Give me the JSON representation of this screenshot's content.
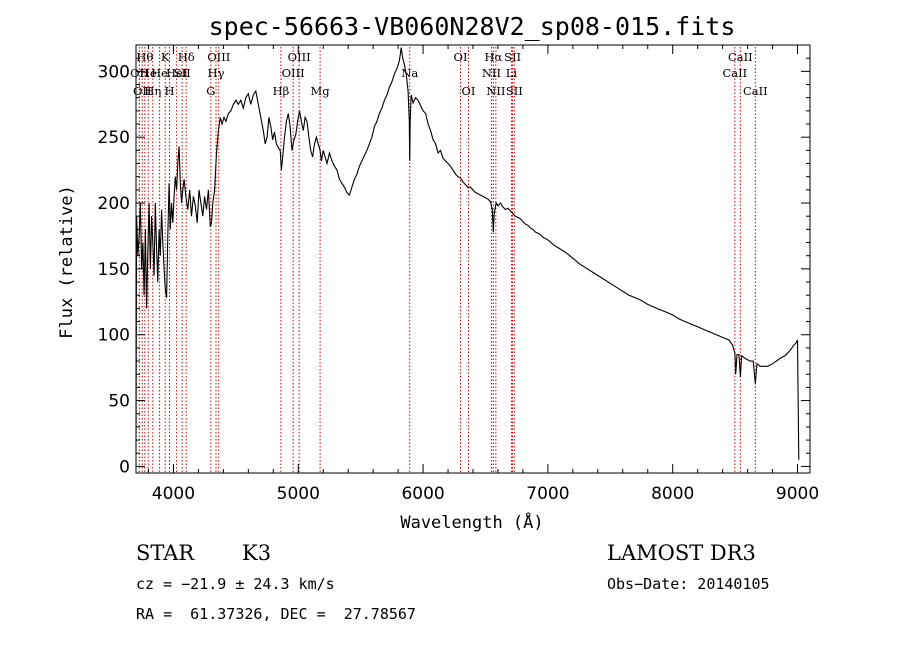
{
  "chart_data": {
    "type": "line",
    "title": "spec-56663-VB060N28V2_sp08-015.fits",
    "xlabel": "Wavelength (Å)",
    "ylabel": "Flux (relative)",
    "xlim": [
      3700,
      9100
    ],
    "ylim": [
      -5,
      320
    ],
    "xticks": [
      4000,
      5000,
      6000,
      7000,
      8000,
      9000
    ],
    "yticks": [
      0,
      50,
      100,
      150,
      200,
      250,
      300
    ],
    "grid": false,
    "series": [
      {
        "name": "spectrum",
        "points": [
          [
            3700,
            15
          ],
          [
            3705,
            190
          ],
          [
            3715,
            160
          ],
          [
            3725,
            175
          ],
          [
            3735,
            200
          ],
          [
            3745,
            150
          ],
          [
            3755,
            170
          ],
          [
            3765,
            130
          ],
          [
            3775,
            180
          ],
          [
            3785,
            120
          ],
          [
            3795,
            165
          ],
          [
            3805,
            200
          ],
          [
            3815,
            150
          ],
          [
            3825,
            190
          ],
          [
            3835,
            170
          ],
          [
            3845,
            145
          ],
          [
            3855,
            200
          ],
          [
            3865,
            165
          ],
          [
            3875,
            140
          ],
          [
            3885,
            180
          ],
          [
            3895,
            160
          ],
          [
            3905,
            195
          ],
          [
            3915,
            170
          ],
          [
            3925,
            150
          ],
          [
            3935,
            135
          ],
          [
            3945,
            128
          ],
          [
            3955,
            175
          ],
          [
            3965,
            215
          ],
          [
            3975,
            180
          ],
          [
            3985,
            200
          ],
          [
            3995,
            185
          ],
          [
            4005,
            205
          ],
          [
            4015,
            220
          ],
          [
            4025,
            210
          ],
          [
            4035,
            230
          ],
          [
            4045,
            243
          ],
          [
            4055,
            215
          ],
          [
            4065,
            200
          ],
          [
            4075,
            210
          ],
          [
            4085,
            218
          ],
          [
            4100,
            205
          ],
          [
            4115,
            195
          ],
          [
            4130,
            210
          ],
          [
            4145,
            190
          ],
          [
            4160,
            205
          ],
          [
            4175,
            198
          ],
          [
            4190,
            185
          ],
          [
            4205,
            210
          ],
          [
            4220,
            200
          ],
          [
            4235,
            190
          ],
          [
            4250,
            205
          ],
          [
            4265,
            195
          ],
          [
            4280,
            210
          ],
          [
            4295,
            182
          ],
          [
            4305,
            185
          ],
          [
            4315,
            200
          ],
          [
            4330,
            210
          ],
          [
            4345,
            238
          ],
          [
            4360,
            255
          ],
          [
            4375,
            265
          ],
          [
            4390,
            260
          ],
          [
            4405,
            265
          ],
          [
            4420,
            262
          ],
          [
            4440,
            268
          ],
          [
            4460,
            270
          ],
          [
            4480,
            275
          ],
          [
            4500,
            278
          ],
          [
            4520,
            275
          ],
          [
            4540,
            278
          ],
          [
            4560,
            272
          ],
          [
            4580,
            280
          ],
          [
            4600,
            283
          ],
          [
            4620,
            275
          ],
          [
            4640,
            282
          ],
          [
            4660,
            285
          ],
          [
            4680,
            275
          ],
          [
            4700,
            265
          ],
          [
            4720,
            255
          ],
          [
            4735,
            245
          ],
          [
            4750,
            250
          ],
          [
            4765,
            265
          ],
          [
            4780,
            258
          ],
          [
            4795,
            248
          ],
          [
            4810,
            254
          ],
          [
            4825,
            245
          ],
          [
            4840,
            242
          ],
          [
            4855,
            240
          ],
          [
            4865,
            225
          ],
          [
            4875,
            235
          ],
          [
            4890,
            250
          ],
          [
            4905,
            262
          ],
          [
            4920,
            268
          ],
          [
            4935,
            258
          ],
          [
            4950,
            240
          ],
          [
            4965,
            248
          ],
          [
            4980,
            252
          ],
          [
            4995,
            262
          ],
          [
            5010,
            270
          ],
          [
            5025,
            262
          ],
          [
            5040,
            255
          ],
          [
            5055,
            265
          ],
          [
            5070,
            262
          ],
          [
            5085,
            250
          ],
          [
            5100,
            240
          ],
          [
            5115,
            235
          ],
          [
            5130,
            245
          ],
          [
            5145,
            250
          ],
          [
            5160,
            245
          ],
          [
            5175,
            240
          ],
          [
            5185,
            232
          ],
          [
            5200,
            240
          ],
          [
            5215,
            235
          ],
          [
            5230,
            230
          ],
          [
            5250,
            238
          ],
          [
            5270,
            232
          ],
          [
            5290,
            228
          ],
          [
            5310,
            225
          ],
          [
            5330,
            218
          ],
          [
            5350,
            215
          ],
          [
            5370,
            212
          ],
          [
            5390,
            208
          ],
          [
            5410,
            206
          ],
          [
            5430,
            212
          ],
          [
            5450,
            218
          ],
          [
            5470,
            222
          ],
          [
            5490,
            228
          ],
          [
            5510,
            232
          ],
          [
            5530,
            236
          ],
          [
            5550,
            240
          ],
          [
            5570,
            245
          ],
          [
            5590,
            250
          ],
          [
            5610,
            258
          ],
          [
            5630,
            262
          ],
          [
            5650,
            268
          ],
          [
            5670,
            272
          ],
          [
            5690,
            278
          ],
          [
            5710,
            282
          ],
          [
            5730,
            288
          ],
          [
            5750,
            292
          ],
          [
            5770,
            298
          ],
          [
            5790,
            302
          ],
          [
            5810,
            308
          ],
          [
            5825,
            318
          ],
          [
            5835,
            311
          ],
          [
            5850,
            305
          ],
          [
            5865,
            298
          ],
          [
            5880,
            285
          ],
          [
            5890,
            262
          ],
          [
            5893,
            232
          ],
          [
            5897,
            262
          ],
          [
            5905,
            282
          ],
          [
            5920,
            276
          ],
          [
            5940,
            280
          ],
          [
            5960,
            278
          ],
          [
            5980,
            274
          ],
          [
            6000,
            270
          ],
          [
            6020,
            268
          ],
          [
            6040,
            260
          ],
          [
            6060,
            255
          ],
          [
            6080,
            248
          ],
          [
            6100,
            245
          ],
          [
            6120,
            238
          ],
          [
            6140,
            240
          ],
          [
            6160,
            234
          ],
          [
            6180,
            232
          ],
          [
            6200,
            230
          ],
          [
            6220,
            228
          ],
          [
            6240,
            225
          ],
          [
            6260,
            222
          ],
          [
            6280,
            220
          ],
          [
            6300,
            219
          ],
          [
            6320,
            216
          ],
          [
            6340,
            214
          ],
          [
            6360,
            212
          ],
          [
            6380,
            212
          ],
          [
            6400,
            210
          ],
          [
            6420,
            208
          ],
          [
            6440,
            207
          ],
          [
            6460,
            206
          ],
          [
            6480,
            205
          ],
          [
            6500,
            204
          ],
          [
            6520,
            203
          ],
          [
            6540,
            201
          ],
          [
            6555,
            195
          ],
          [
            6563,
            178
          ],
          [
            6570,
            192
          ],
          [
            6585,
            200
          ],
          [
            6600,
            198
          ],
          [
            6620,
            200
          ],
          [
            6640,
            197
          ],
          [
            6660,
            195
          ],
          [
            6680,
            196
          ],
          [
            6700,
            194
          ],
          [
            6720,
            192
          ],
          [
            6740,
            190
          ],
          [
            6760,
            189
          ],
          [
            6780,
            188
          ],
          [
            6800,
            186
          ],
          [
            6820,
            184
          ],
          [
            6840,
            183
          ],
          [
            6860,
            181
          ],
          [
            6880,
            180
          ],
          [
            6900,
            178
          ],
          [
            6920,
            177
          ],
          [
            6940,
            176
          ],
          [
            6960,
            174
          ],
          [
            6980,
            173
          ],
          [
            7000,
            172
          ],
          [
            7050,
            168
          ],
          [
            7100,
            165
          ],
          [
            7150,
            162
          ],
          [
            7200,
            158
          ],
          [
            7250,
            154
          ],
          [
            7300,
            151
          ],
          [
            7350,
            148
          ],
          [
            7400,
            145
          ],
          [
            7450,
            142
          ],
          [
            7500,
            139
          ],
          [
            7550,
            136
          ],
          [
            7600,
            133
          ],
          [
            7650,
            130
          ],
          [
            7700,
            128
          ],
          [
            7750,
            126
          ],
          [
            7800,
            123
          ],
          [
            7850,
            121
          ],
          [
            7900,
            119
          ],
          [
            7950,
            117
          ],
          [
            8000,
            115
          ],
          [
            8050,
            112
          ],
          [
            8100,
            110
          ],
          [
            8150,
            108
          ],
          [
            8200,
            106
          ],
          [
            8250,
            104
          ],
          [
            8300,
            102
          ],
          [
            8350,
            100
          ],
          [
            8400,
            98
          ],
          [
            8450,
            96
          ],
          [
            8480,
            92
          ],
          [
            8498,
            86
          ],
          [
            8505,
            70
          ],
          [
            8515,
            85
          ],
          [
            8530,
            85
          ],
          [
            8542,
            68
          ],
          [
            8552,
            84
          ],
          [
            8580,
            82
          ],
          [
            8620,
            80
          ],
          [
            8645,
            80
          ],
          [
            8662,
            63
          ],
          [
            8675,
            78
          ],
          [
            8700,
            76
          ],
          [
            8730,
            76
          ],
          [
            8760,
            76
          ],
          [
            8800,
            78
          ],
          [
            8830,
            80
          ],
          [
            8860,
            82
          ],
          [
            8900,
            84
          ],
          [
            8940,
            88
          ],
          [
            8970,
            92
          ],
          [
            8990,
            94
          ],
          [
            9000,
            96
          ],
          [
            9010,
            5
          ]
        ]
      }
    ],
    "lines": [
      {
        "x": 3727,
        "label": "OII",
        "row": 1
      },
      {
        "x": 3750,
        "label": "OII",
        "row": 2
      },
      {
        "x": 3771,
        "label": "Hθ",
        "row": 0
      },
      {
        "x": 3798,
        "label": "He",
        "row": 1
      },
      {
        "x": 3835,
        "label": "Hη",
        "row": 2
      },
      {
        "x": 3889,
        "label": "He",
        "row": 1
      },
      {
        "x": 3934,
        "label": "K",
        "row": 0
      },
      {
        "x": 3969,
        "label": "H",
        "row": 2
      },
      {
        "x": 4026,
        "label": "HeI",
        "row": 1
      },
      {
        "x": 4070,
        "label": "SII",
        "row": 1
      },
      {
        "x": 4102,
        "label": "Hδ",
        "row": 0
      },
      {
        "x": 4300,
        "label": "G",
        "row": 2
      },
      {
        "x": 4341,
        "label": "Hγ",
        "row": 1
      },
      {
        "x": 4363,
        "label": "OIII",
        "row": 0
      },
      {
        "x": 4861,
        "label": "Hβ",
        "row": 2
      },
      {
        "x": 4959,
        "label": "OIII",
        "row": 1
      },
      {
        "x": 5007,
        "label": "OIII",
        "row": 0
      },
      {
        "x": 5175,
        "label": "Mg",
        "row": 2
      },
      {
        "x": 5893,
        "label": "Na",
        "row": 1
      },
      {
        "x": 6300,
        "label": "OI",
        "row": 0
      },
      {
        "x": 6364,
        "label": "OI",
        "row": 2
      },
      {
        "x": 6548,
        "label": "NII",
        "row": 1
      },
      {
        "x": 6563,
        "label": "Hα",
        "row": 0
      },
      {
        "x": 6583,
        "label": "NII",
        "row": 2
      },
      {
        "x": 6708,
        "label": "Li",
        "row": 1
      },
      {
        "x": 6717,
        "label": "SII",
        "row": 0
      },
      {
        "x": 6731,
        "label": "SII",
        "row": 2
      },
      {
        "x": 8498,
        "label": "CaII",
        "row": 1
      },
      {
        "x": 8542,
        "label": "CaII",
        "row": 0
      },
      {
        "x": 8662,
        "label": "CaII",
        "row": 2
      }
    ]
  },
  "info": {
    "class": "STAR",
    "subclass": "K3",
    "survey": "LAMOST DR3",
    "cz": "cz = −21.9 ± 24.3 km/s",
    "obs_date": "Obs−Date: 20140105",
    "coords": "RA =  61.37326, DEC =  27.78567"
  },
  "colors": {
    "spectrum": "#000000",
    "marker": "#cc0000",
    "axes": "#000000"
  }
}
